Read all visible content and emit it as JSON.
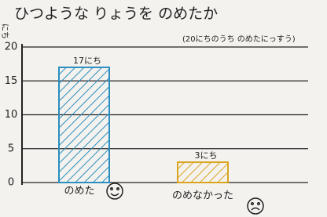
{
  "chart_data": {
    "type": "bar",
    "title": "ひつような りょうを のめたか",
    "subtitle": "(20にちのうち のめたにっすう)",
    "y_label": "にち",
    "categories": [
      "のめた",
      "のめなかった"
    ],
    "values": [
      17,
      3
    ],
    "value_labels": [
      "17にち",
      "3にち"
    ],
    "colors": [
      "#2a8fc0",
      "#d9a520"
    ],
    "ylim": [
      0,
      20
    ],
    "yticks": [
      0,
      5,
      10,
      15,
      20
    ],
    "grid": true
  }
}
